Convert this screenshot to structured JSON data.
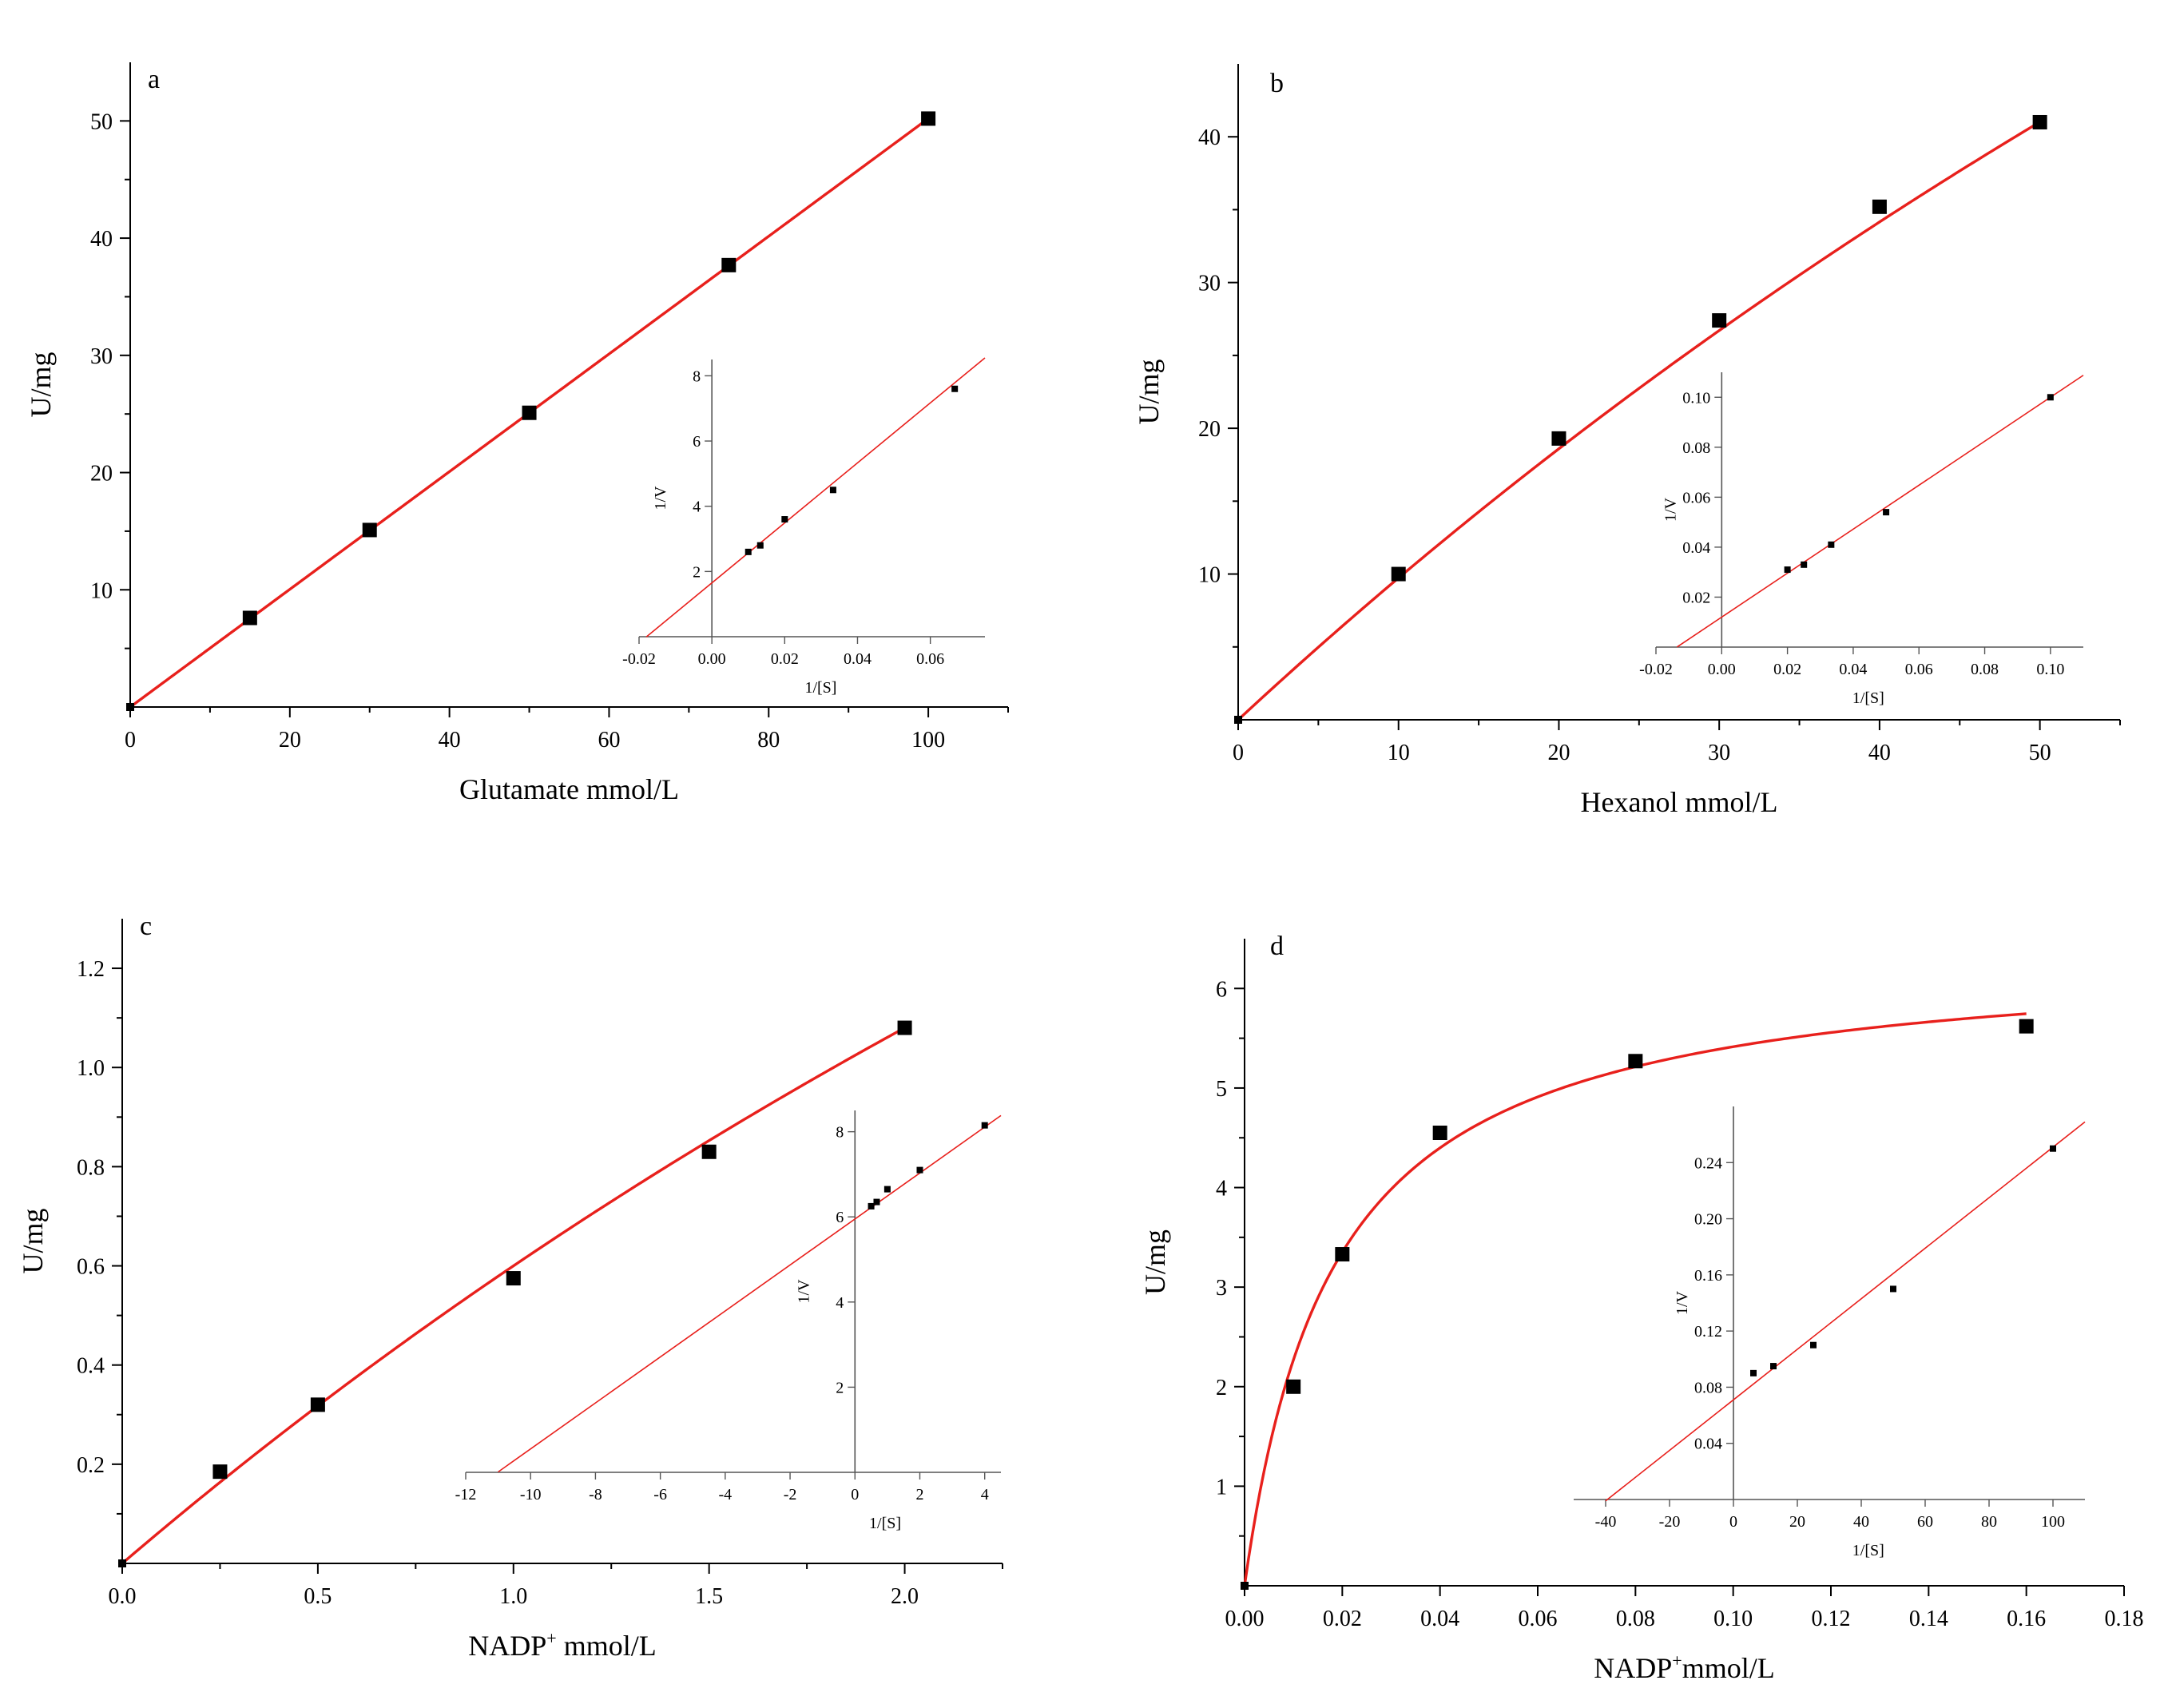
{
  "figure": {
    "background": "#ffffff",
    "fit_color": "#e8201c",
    "marker_color": "#000000"
  },
  "chart_data": [
    {
      "type": "scatter",
      "panel_label": "a",
      "xlabel": "Glutamate mmol/L",
      "ylabel": "U/mg",
      "xlim": [
        0,
        110
      ],
      "ylim": [
        0,
        55
      ],
      "xticks": [
        0,
        20,
        40,
        60,
        80,
        100
      ],
      "yticks": [
        10,
        20,
        30,
        40,
        50
      ],
      "x_minor_ticks": [
        10,
        30,
        50,
        70,
        90,
        110
      ],
      "y_minor_ticks": [
        5,
        15,
        25,
        35,
        45
      ],
      "points": {
        "x": [
          0,
          15,
          30,
          50,
          75,
          100
        ],
        "y": [
          0,
          7.6,
          15.1,
          25.1,
          37.7,
          50.2
        ]
      },
      "fit": {
        "model": "linear",
        "params": {
          "slope": 0.502,
          "intercept": 0
        },
        "range": [
          0,
          100
        ]
      },
      "inset": {
        "type": "scatter",
        "xlabel": "1/[S]",
        "ylabel": "1/V",
        "xlim": [
          -0.02,
          0.075
        ],
        "ylim": [
          0,
          8.5
        ],
        "xticks": [
          -0.02,
          0,
          0.02,
          0.04,
          0.06
        ],
        "xtick_labels": [
          "-0.02",
          "0.00",
          "0.02",
          "0.04",
          "0.06"
        ],
        "yticks": [
          2,
          4,
          6,
          8
        ],
        "ytick_labels": [
          "2",
          "4",
          "6",
          "8"
        ],
        "points": {
          "x": [
            0.01,
            0.0133,
            0.02,
            0.0333,
            0.0667
          ],
          "y": [
            2.6,
            2.8,
            3.6,
            4.5,
            7.6
          ]
        },
        "fit": {
          "model": "linear",
          "params": {
            "slope": 92,
            "intercept": 1.65
          },
          "range": [
            -0.018,
            0.075
          ]
        }
      }
    },
    {
      "type": "scatter",
      "panel_label": "b",
      "xlabel": "Hexanol mmol/L",
      "ylabel": "U/mg",
      "xlim": [
        0,
        55
      ],
      "ylim": [
        0,
        45
      ],
      "xticks": [
        0,
        10,
        20,
        30,
        40,
        50
      ],
      "yticks": [
        10,
        20,
        30,
        40
      ],
      "x_minor_ticks": [
        5,
        15,
        25,
        35,
        45,
        55
      ],
      "y_minor_ticks": [
        5,
        15,
        25,
        35
      ],
      "points": {
        "x": [
          0,
          10,
          20,
          30,
          40,
          50
        ],
        "y": [
          0,
          10,
          19.3,
          27.4,
          35.2,
          41
        ]
      },
      "fit": {
        "model": "michaelis_menten",
        "params": {
          "vmax": 209.2,
          "km": 205
        },
        "range": [
          0,
          50
        ]
      },
      "inset": {
        "type": "scatter",
        "xlabel": "1/[S]",
        "ylabel": "1/V",
        "xlim": [
          -0.02,
          0.11
        ],
        "ylim": [
          0,
          0.11
        ],
        "xticks": [
          -0.02,
          0,
          0.02,
          0.04,
          0.06,
          0.08,
          0.1
        ],
        "xtick_labels": [
          "-0.02",
          "0.00",
          "0.02",
          "0.04",
          "0.06",
          "0.08",
          "0.10"
        ],
        "yticks": [
          0.02,
          0.04,
          0.06,
          0.08,
          0.1
        ],
        "ytick_labels": [
          "0.02",
          "0.04",
          "0.06",
          "0.08",
          "0.10"
        ],
        "points": {
          "x": [
            0.02,
            0.025,
            0.0333,
            0.05,
            0.1
          ],
          "y": [
            0.031,
            0.033,
            0.041,
            0.054,
            0.1
          ]
        },
        "fit": {
          "model": "linear",
          "params": {
            "slope": 0.88,
            "intercept": 0.012
          },
          "range": [
            -0.0136,
            0.11
          ]
        }
      }
    },
    {
      "type": "scatter",
      "panel_label": "c",
      "xlabel_base": "NADP",
      "xlabel_sup": "+",
      "xlabel_rest": " mmol/L",
      "ylabel": "U/mg",
      "xlim": [
        0,
        2.25
      ],
      "ylim": [
        0,
        1.3
      ],
      "xticks": [
        0,
        0.5,
        1,
        1.5,
        2
      ],
      "xtick_labels": [
        "0.0",
        "0.5",
        "1.0",
        "1.5",
        "2.0"
      ],
      "yticks": [
        0.2,
        0.4,
        0.6,
        0.8,
        1,
        1.2
      ],
      "ytick_labels": [
        "0.2",
        "0.4",
        "0.6",
        "0.8",
        "1.0",
        "1.2"
      ],
      "x_minor_ticks": [
        0.25,
        0.75,
        1.25,
        1.75,
        2.25
      ],
      "y_minor_ticks": [
        0.1,
        0.3,
        0.5,
        0.7,
        0.9,
        1.1
      ],
      "points": {
        "x": [
          0,
          0.25,
          0.5,
          1,
          1.5,
          2
        ],
        "y": [
          0,
          0.185,
          0.32,
          0.575,
          0.83,
          1.08
        ]
      },
      "fit": {
        "model": "michaelis_menten",
        "params": {
          "vmax": 5.4,
          "km": 8
        },
        "range": [
          0,
          2
        ]
      },
      "inset": {
        "type": "scatter",
        "xlabel": "1/[S]",
        "ylabel": "1/V",
        "xlim": [
          -12,
          4.5
        ],
        "ylim": [
          0,
          8.5
        ],
        "xticks": [
          -12,
          -10,
          -8,
          -6,
          -4,
          -2,
          0,
          2,
          4
        ],
        "xtick_labels": [
          "-12",
          "-10",
          "-8",
          "-6",
          "-4",
          "-2",
          "0",
          "2",
          "4"
        ],
        "yticks": [
          2,
          4,
          6,
          8
        ],
        "ytick_labels": [
          "2",
          "4",
          "6",
          "8"
        ],
        "points": {
          "x": [
            0.5,
            0.67,
            1,
            2,
            4
          ],
          "y": [
            6.25,
            6.35,
            6.65,
            7.1,
            8.15
          ]
        },
        "fit": {
          "model": "linear",
          "params": {
            "slope": 0.54,
            "intercept": 5.95
          },
          "range": [
            -11,
            4.5
          ]
        }
      }
    },
    {
      "type": "scatter",
      "panel_label": "d",
      "xlabel_base": "NADP",
      "xlabel_sup": "+",
      "xlabel_rest": "mmol/L",
      "ylabel": "U/mg",
      "xlim": [
        0,
        0.18
      ],
      "ylim": [
        0,
        6.5
      ],
      "xticks": [
        0,
        0.02,
        0.04,
        0.06,
        0.08,
        0.1,
        0.12,
        0.14,
        0.16,
        0.18
      ],
      "xtick_labels": [
        "0.00",
        "0.02",
        "0.04",
        "0.06",
        "0.08",
        "0.10",
        "0.12",
        "0.14",
        "0.16",
        "0.18"
      ],
      "yticks": [
        1,
        2,
        3,
        4,
        5,
        6
      ],
      "y_minor_ticks": [
        0.5,
        1.5,
        2.5,
        3.5,
        4.5,
        5.5
      ],
      "points": {
        "x": [
          0,
          0.01,
          0.02,
          0.04,
          0.08,
          0.16
        ],
        "y": [
          0,
          2,
          3.33,
          4.55,
          5.27,
          5.62
        ]
      },
      "fit": {
        "model": "michaelis_menten",
        "params": {
          "vmax": 6.4,
          "km": 0.0182
        },
        "range": [
          0,
          0.16
        ]
      },
      "inset": {
        "type": "scatter",
        "xlabel": "1/[S]",
        "ylabel": "1/V",
        "xlim": [
          -50,
          110
        ],
        "ylim": [
          0,
          0.28
        ],
        "xticks": [
          -40,
          -20,
          0,
          20,
          40,
          60,
          80,
          100
        ],
        "xtick_labels": [
          "-40",
          "-20",
          "0",
          "20",
          "40",
          "60",
          "80",
          "100"
        ],
        "yticks": [
          0.04,
          0.08,
          0.12,
          0.16,
          0.2,
          0.24
        ],
        "ytick_labels": [
          "0.04",
          "0.08",
          "0.12",
          "0.16",
          "0.20",
          "0.24"
        ],
        "points": {
          "x": [
            6.25,
            12.5,
            25,
            50,
            100
          ],
          "y": [
            0.09,
            0.095,
            0.11,
            0.15,
            0.25
          ]
        },
        "fit": {
          "model": "linear",
          "params": {
            "slope": 0.0018,
            "intercept": 0.071
          },
          "range": [
            -40,
            110
          ]
        }
      }
    }
  ]
}
